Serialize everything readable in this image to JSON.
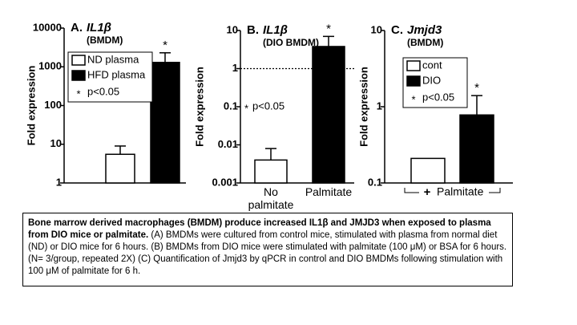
{
  "chart_data": [
    {
      "type": "bar",
      "panel": "A.",
      "title": "IL1β",
      "subtitle": "(BMDM)",
      "ylabel": "Fold expression",
      "log_scale": true,
      "ylim": [
        1,
        10000
      ],
      "yticks": [
        1,
        10,
        100,
        1000,
        10000
      ],
      "categories": [
        null,
        null
      ],
      "values": [
        5.5,
        1300
      ],
      "errors": [
        3.5,
        1000
      ],
      "colors": [
        "#ffffff",
        "#000000"
      ],
      "legend": [
        "ND plasma",
        "HFD plasma"
      ],
      "significance_marker": "*",
      "legend_note": "p<0.05"
    },
    {
      "type": "bar",
      "panel": "B.",
      "title": "IL1β",
      "subtitle": "(DIO BMDM)",
      "ylabel": "Fold expression",
      "log_scale": true,
      "ylim": [
        0.001,
        10
      ],
      "yticks": [
        0.001,
        0.01,
        0.1,
        1,
        10
      ],
      "categories": [
        "No\npalmitate",
        "Palmitate"
      ],
      "values": [
        0.004,
        3.8
      ],
      "errors": [
        0.004,
        3.2
      ],
      "colors": [
        "#ffffff",
        "#000000"
      ],
      "reference_line": 1,
      "significance_marker": "*",
      "legend_note": "p<0.05"
    },
    {
      "type": "bar",
      "panel": "C.",
      "title": "Jmjd3",
      "subtitle": "(BMDM)",
      "ylabel": "Fold expression",
      "log_scale": true,
      "ylim": [
        0.1,
        10
      ],
      "yticks": [
        0.1,
        1,
        10
      ],
      "categories": [
        null,
        null
      ],
      "values": [
        0.21,
        0.78
      ],
      "errors": [
        0,
        0.62
      ],
      "colors": [
        "#ffffff",
        "#000000"
      ],
      "legend": [
        "cont",
        "DIO"
      ],
      "significance_marker": "*",
      "legend_note": "p<0.05",
      "x_marker": "+",
      "xlabel": "Palmitate"
    }
  ],
  "caption": {
    "bold": "Bone marrow derived macrophages (BMDM) produce increased IL1β and JMJD3 when exposed to plasma from DIO mice or palmitate.",
    "text": " (A) BMDMs were cultured from control mice, stimulated with plasma from normal diet (ND) or DIO mice for 6 hours. (B) BMDMs from DIO mice were stimulated with palmitate (100 μM) or BSA for 6 hours. (N= 3/group, repeated 2X) (C) Quantification of Jmjd3 by qPCR in control and DIO BMDMs following stimulation with 100 μM of palmitate for 6 h."
  }
}
